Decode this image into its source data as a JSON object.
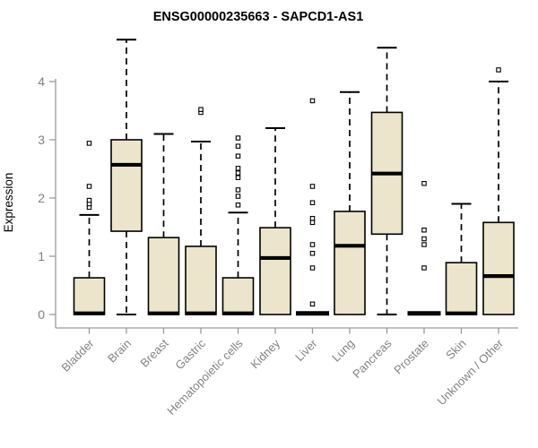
{
  "colors": {
    "box_fill": "#ECE5CB",
    "box_stroke": "#000000",
    "median_color": "#000000",
    "whisker_color": "#000000",
    "outlier_stroke": "#000000",
    "outlier_fill": "#ffffff",
    "axis_color": "#9a9a9a",
    "tick_label_color": "#7f7f88",
    "category_label_color": "#838383",
    "title_color": "#000000",
    "background": "#ffffff"
  },
  "chart_data": {
    "type": "boxplot",
    "title": "ENSG00000235663 - SAPCD1-AS1",
    "ylabel": "Expression",
    "xlabel": "",
    "grid": false,
    "legend": null,
    "ylim": [
      -0.2,
      4.85
    ],
    "yticks": [
      0,
      1,
      2,
      3,
      4
    ],
    "categories": [
      "Bladder",
      "Brain",
      "Breast",
      "Gastric",
      "Hematopoietic cells",
      "Kidney",
      "Liver",
      "Lung",
      "Pancreas",
      "Prostate",
      "Skin",
      "Unknown / Other"
    ],
    "boxes": [
      {
        "category": "Bladder",
        "low": 0,
        "q1": 0,
        "median": 0.02,
        "q3": 0.63,
        "high": 1.71,
        "outliers": [
          1.84,
          1.9,
          1.96,
          2.2,
          2.94
        ]
      },
      {
        "category": "Brain",
        "low": 0,
        "q1": 1.43,
        "median": 2.57,
        "q3": 3.0,
        "high": 4.72,
        "outliers": []
      },
      {
        "category": "Breast",
        "low": 0,
        "q1": 0,
        "median": 0.02,
        "q3": 1.32,
        "high": 3.1,
        "outliers": []
      },
      {
        "category": "Gastric",
        "low": 0,
        "q1": 0,
        "median": 0.02,
        "q3": 1.17,
        "high": 2.97,
        "outliers": [
          3.47,
          3.52
        ]
      },
      {
        "category": "Hematopoietic cells",
        "low": 0,
        "q1": 0,
        "median": 0.02,
        "q3": 0.63,
        "high": 1.75,
        "outliers": [
          1.88,
          2.03,
          2.14,
          2.35,
          2.43,
          2.51,
          2.72,
          2.89,
          3.03
        ]
      },
      {
        "category": "Kidney",
        "low": 0,
        "q1": 0,
        "median": 0.97,
        "q3": 1.49,
        "high": 3.2,
        "outliers": []
      },
      {
        "category": "Liver",
        "low": 0,
        "q1": 0,
        "median": 0.02,
        "q3": 0.02,
        "high": 0.02,
        "outliers": [
          0.18,
          0.8,
          1.05,
          1.2,
          1.58,
          1.65,
          1.92,
          2.2,
          3.67
        ]
      },
      {
        "category": "Lung",
        "low": 0,
        "q1": 0,
        "median": 1.18,
        "q3": 1.77,
        "high": 3.82,
        "outliers": []
      },
      {
        "category": "Pancreas",
        "low": 0,
        "q1": 1.38,
        "median": 2.42,
        "q3": 3.47,
        "high": 4.58,
        "outliers": []
      },
      {
        "category": "Prostate",
        "low": 0,
        "q1": 0,
        "median": 0.02,
        "q3": 0.02,
        "high": 0.02,
        "outliers": [
          0.8,
          1.2,
          1.3,
          1.45,
          2.25
        ]
      },
      {
        "category": "Skin",
        "low": 0,
        "q1": 0,
        "median": 0.02,
        "q3": 0.89,
        "high": 1.9,
        "outliers": []
      },
      {
        "category": "Unknown / Other",
        "low": 0,
        "q1": 0,
        "median": 0.66,
        "q3": 1.58,
        "high": 4.0,
        "outliers": [
          4.2
        ]
      }
    ]
  }
}
